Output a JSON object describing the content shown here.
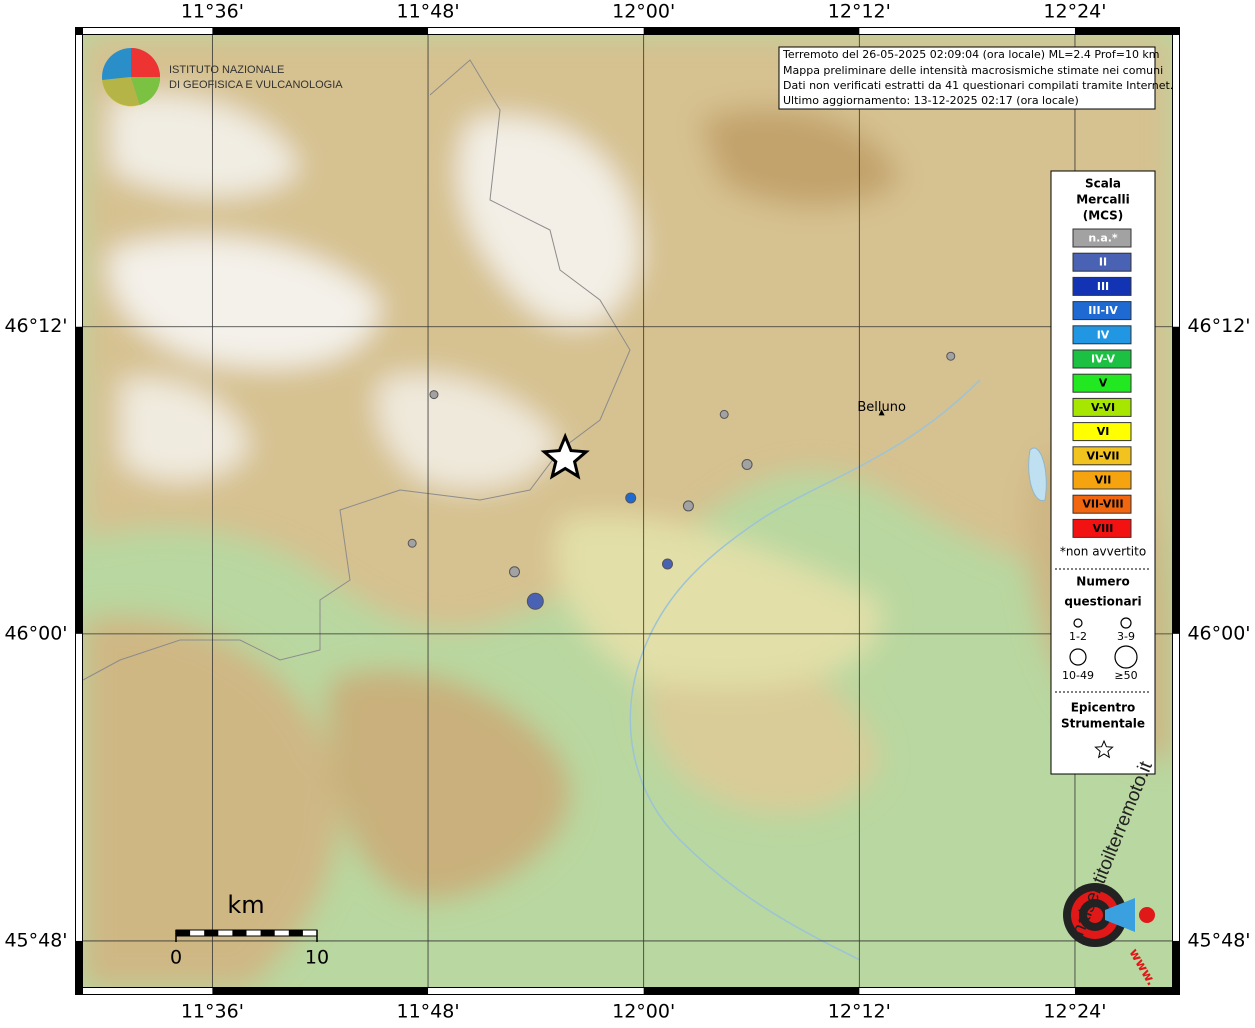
{
  "map": {
    "info": [
      "Terremoto del 26-05-2025 02:09:04 (ora locale) ML=2.4 Prof=10 km",
      "Mappa preliminare delle intensità macrosismiche stimate nei comuni",
      "Dati non verificati estratti da 41 questionari compilati tramite Internet.",
      "Ultimo aggiornamento: 13-12-2025 02:17 (ora locale)"
    ],
    "institute": [
      "ISTITUTO NAZIONALE",
      "DI GEOFISICA E VULCANOLOGIA"
    ],
    "xlim": [
      11.48,
      12.49
    ],
    "ylim": [
      45.77,
      46.39
    ],
    "xticks": [
      {
        "value": 11.6,
        "label": "11°36'"
      },
      {
        "value": 11.8,
        "label": "11°48'"
      },
      {
        "value": 12.0,
        "label": "12°00'"
      },
      {
        "value": 12.2,
        "label": "12°12'"
      },
      {
        "value": 12.4,
        "label": "12°24'"
      }
    ],
    "yticks": [
      {
        "value": 45.8,
        "label": "45°48'"
      },
      {
        "value": 46.0,
        "label": "46°00'"
      },
      {
        "value": 46.2,
        "label": "46°12'"
      }
    ],
    "city": {
      "name": "Belluno",
      "lon": 12.2207,
      "lat": 46.1436
    },
    "epicenter": {
      "lon": 11.9272,
      "lat": 46.1141
    },
    "points": [
      {
        "lon": 11.8055,
        "lat": 46.1558,
        "intensity": "n.a.*",
        "responses": "1-2"
      },
      {
        "lon": 12.0747,
        "lat": 46.1429,
        "intensity": "n.a.*",
        "responses": "1-2"
      },
      {
        "lon": 12.2848,
        "lat": 46.1808,
        "intensity": "n.a.*",
        "responses": "1-2"
      },
      {
        "lon": 12.0959,
        "lat": 46.1103,
        "intensity": "n.a.*",
        "responses": "3-9"
      },
      {
        "lon": 11.988,
        "lat": 46.0885,
        "intensity": "III-IV",
        "responses": "3-9"
      },
      {
        "lon": 12.0415,
        "lat": 46.0833,
        "intensity": "n.a.*",
        "responses": "3-9"
      },
      {
        "lon": 11.7853,
        "lat": 46.059,
        "intensity": "n.a.*",
        "responses": "1-2"
      },
      {
        "lon": 11.8802,
        "lat": 46.0404,
        "intensity": "n.a.*",
        "responses": "3-9"
      },
      {
        "lon": 12.0221,
        "lat": 46.0455,
        "intensity": "II",
        "responses": "3-9"
      },
      {
        "lon": 11.8995,
        "lat": 46.0212,
        "intensity": "II",
        "responses": "10-49"
      }
    ],
    "legend": {
      "title": [
        "Scala",
        "Mercalli",
        "(MCS)"
      ],
      "classes": [
        {
          "label": "n.a.*",
          "color": "#a2a2a2"
        },
        {
          "label": "II",
          "color": "#4a62b4"
        },
        {
          "label": "III",
          "color": "#1234b4"
        },
        {
          "label": "III-IV",
          "color": "#1f6ad2"
        },
        {
          "label": "IV",
          "color": "#2196e2"
        },
        {
          "label": "IV-V",
          "color": "#1cc043"
        },
        {
          "label": "V",
          "color": "#21e821"
        },
        {
          "label": "V-VI",
          "color": "#a6e600"
        },
        {
          "label": "VI",
          "color": "#ffff00"
        },
        {
          "label": "VI-VII",
          "color": "#f2c21e"
        },
        {
          "label": "VII",
          "color": "#f5a40f"
        },
        {
          "label": "VII-VIII",
          "color": "#f2660f"
        },
        {
          "label": "VIII",
          "color": "#f21212"
        }
      ],
      "note": "*non avvertito",
      "size_title": [
        "Numero",
        "questionari"
      ],
      "sizes": [
        {
          "label": "1-2",
          "r": 4
        },
        {
          "label": "3-9",
          "r": 5
        },
        {
          "label": "10-49",
          "r": 8
        },
        {
          "label": "≥50",
          "r": 11
        }
      ],
      "epicenter_title": [
        "Epicentro",
        "Strumentale"
      ]
    },
    "scale": {
      "unit": "km",
      "ticks": [
        0,
        10
      ]
    },
    "badge": [
      "haisentitoilterremoto.it",
      "www."
    ]
  }
}
